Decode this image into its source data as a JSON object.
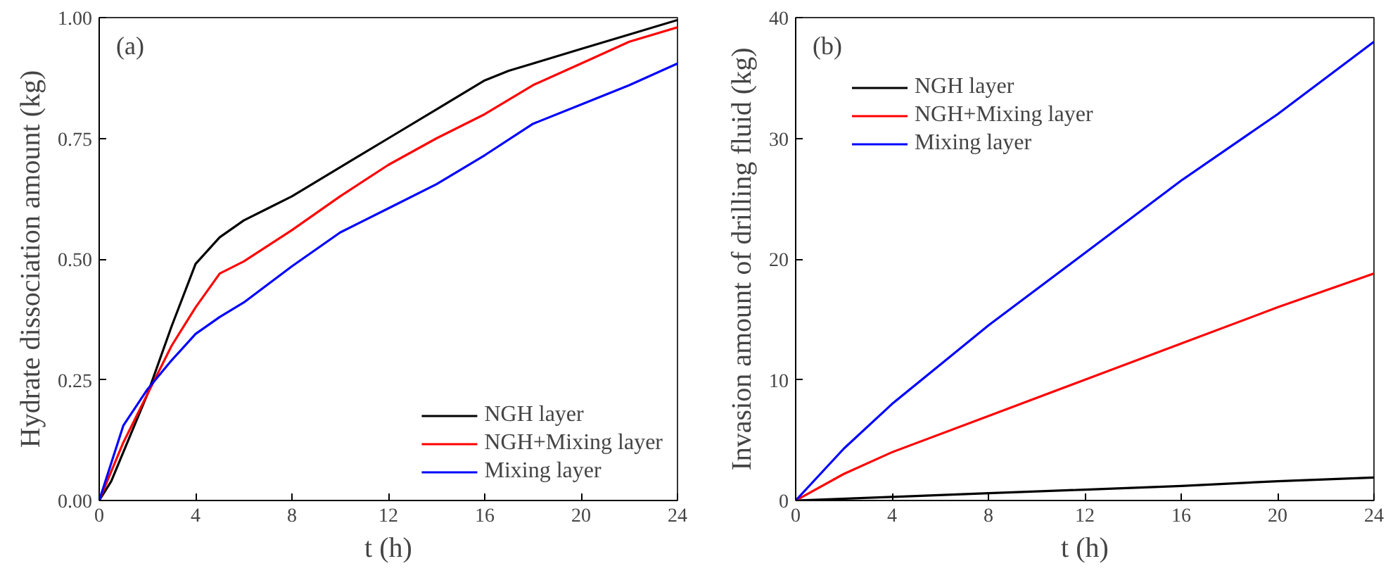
{
  "chart_data": [
    {
      "type": "line",
      "annotations": [
        "(a)"
      ],
      "xlabel": "t (h)",
      "ylabel": "Hydrate dissociation amount (kg)",
      "xlim": [
        0,
        24
      ],
      "xticks": [
        0,
        4,
        8,
        12,
        16,
        20,
        24
      ],
      "ylim": [
        0,
        1
      ],
      "yticks": [
        {
          "value": 0,
          "label": "0.00"
        },
        {
          "value": 0.25,
          "label": "0.25"
        },
        {
          "value": 0.5,
          "label": "0.50"
        },
        {
          "value": 0.75,
          "label": "0.75"
        },
        {
          "value": 1,
          "label": "1.00"
        }
      ],
      "grid": false,
      "legend": "bottom right",
      "series": [
        {
          "name": "NGH layer",
          "color": "#000000",
          "x": [
            0,
            0.5,
            1,
            2,
            3,
            4,
            5,
            6,
            7,
            8,
            10,
            12,
            14,
            16,
            17,
            18,
            20,
            22,
            24
          ],
          "values": [
            0,
            0.04,
            0.1,
            0.22,
            0.36,
            0.49,
            0.545,
            0.58,
            0.605,
            0.63,
            0.69,
            0.75,
            0.81,
            0.87,
            0.89,
            0.905,
            0.935,
            0.965,
            0.995
          ]
        },
        {
          "name": "NGH+Mixing layer",
          "color": "#ff0000",
          "x": [
            0,
            1,
            2,
            3,
            4,
            5,
            6,
            8,
            10,
            12,
            14,
            16,
            18,
            20,
            22,
            24
          ],
          "values": [
            0,
            0.12,
            0.22,
            0.32,
            0.4,
            0.47,
            0.495,
            0.56,
            0.63,
            0.695,
            0.75,
            0.8,
            0.86,
            0.905,
            0.95,
            0.98
          ]
        },
        {
          "name": "Mixing layer",
          "color": "#0000ff",
          "x": [
            0,
            1,
            2,
            3,
            4,
            5,
            6,
            8,
            10,
            12,
            14,
            16,
            18,
            20,
            22,
            24
          ],
          "values": [
            0,
            0.155,
            0.23,
            0.29,
            0.345,
            0.38,
            0.41,
            0.485,
            0.555,
            0.605,
            0.655,
            0.715,
            0.78,
            0.82,
            0.86,
            0.905
          ]
        }
      ]
    },
    {
      "type": "line",
      "annotations": [
        "(b)"
      ],
      "xlabel": "t (h)",
      "ylabel": "Invasion amount of drilling fluid (kg)",
      "xlim": [
        0,
        24
      ],
      "xticks": [
        0,
        4,
        8,
        12,
        16,
        20,
        24
      ],
      "ylim": [
        0,
        40
      ],
      "yticks": [
        0,
        10,
        20,
        30,
        40
      ],
      "grid": false,
      "legend": "top left",
      "series": [
        {
          "name": "NGH layer",
          "color": "#000000",
          "x": [
            0,
            4,
            8,
            12,
            16,
            20,
            24
          ],
          "values": [
            0,
            0.3,
            0.6,
            0.9,
            1.2,
            1.6,
            1.9
          ]
        },
        {
          "name": "NGH+Mixing layer",
          "color": "#ff0000",
          "x": [
            0,
            2,
            4,
            8,
            12,
            16,
            20,
            24
          ],
          "values": [
            0,
            2.2,
            4,
            7,
            10,
            13,
            16,
            18.8
          ]
        },
        {
          "name": "Mixing layer",
          "color": "#0000ff",
          "x": [
            0,
            2,
            4,
            8,
            12,
            16,
            20,
            24
          ],
          "values": [
            0,
            4.3,
            8,
            14.5,
            20.5,
            26.5,
            32,
            38
          ]
        }
      ]
    }
  ]
}
